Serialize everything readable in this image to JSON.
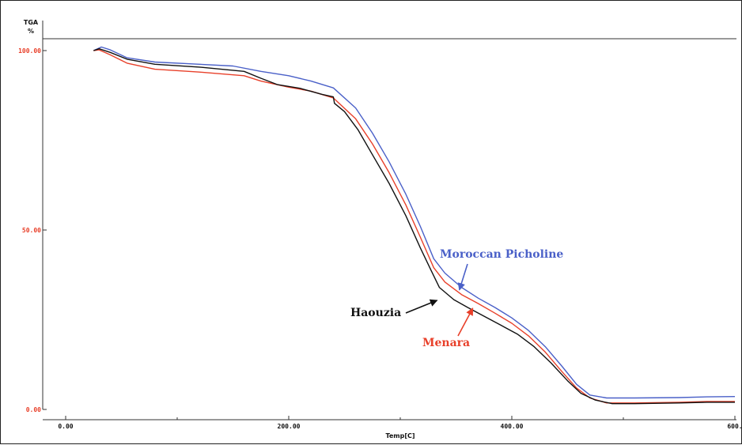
{
  "chart_data": {
    "type": "line",
    "xlabel": "Temp[C]",
    "ylabel": "TGA",
    "yunit": "%",
    "xlim": [
      0,
      600
    ],
    "ylim": [
      0,
      100
    ],
    "x_ticks": [
      {
        "value": 0,
        "label": "0.00"
      },
      {
        "value": 200,
        "label": "200.00"
      },
      {
        "value": 400,
        "label": "400.00"
      },
      {
        "value": 600,
        "label": "600."
      }
    ],
    "y_ticks": [
      {
        "value": 0,
        "label": "0.00"
      },
      {
        "value": 50,
        "label": "50.00"
      },
      {
        "value": 100,
        "label": "100.00"
      }
    ],
    "tick_color_y": "#e8402a",
    "tick_color_x": "#111111",
    "grid": false,
    "series": [
      {
        "name": "Moroccan Picholine",
        "color": "#4a60c8",
        "points": [
          [
            25,
            100
          ],
          [
            32,
            101
          ],
          [
            40,
            100.2
          ],
          [
            55,
            98
          ],
          [
            80,
            96.8
          ],
          [
            120,
            96.2
          ],
          [
            150,
            95.7
          ],
          [
            175,
            94.2
          ],
          [
            200,
            93
          ],
          [
            220,
            91.5
          ],
          [
            240,
            89.6
          ],
          [
            260,
            84
          ],
          [
            275,
            77
          ],
          [
            290,
            69
          ],
          [
            305,
            60
          ],
          [
            318,
            51
          ],
          [
            330,
            42
          ],
          [
            340,
            38
          ],
          [
            355,
            34
          ],
          [
            370,
            31
          ],
          [
            385,
            28.4
          ],
          [
            400,
            25.5
          ],
          [
            415,
            22
          ],
          [
            430,
            17.5
          ],
          [
            445,
            12
          ],
          [
            458,
            7
          ],
          [
            470,
            4
          ],
          [
            485,
            3.2
          ],
          [
            510,
            3.2
          ],
          [
            550,
            3.3
          ],
          [
            575,
            3.5
          ],
          [
            600,
            3.6
          ]
        ]
      },
      {
        "name": "Menara",
        "color": "#e8402a",
        "points": [
          [
            25,
            100
          ],
          [
            30,
            100.2
          ],
          [
            40,
            98.8
          ],
          [
            55,
            96.5
          ],
          [
            80,
            94.8
          ],
          [
            120,
            94
          ],
          [
            160,
            93
          ],
          [
            175,
            91.5
          ],
          [
            200,
            89.8
          ],
          [
            220,
            88.7
          ],
          [
            240,
            86.8
          ],
          [
            260,
            81
          ],
          [
            275,
            74
          ],
          [
            290,
            66
          ],
          [
            305,
            57
          ],
          [
            318,
            48
          ],
          [
            330,
            39.5
          ],
          [
            340,
            35.5
          ],
          [
            355,
            32
          ],
          [
            370,
            29.5
          ],
          [
            385,
            26.8
          ],
          [
            400,
            24
          ],
          [
            415,
            20.5
          ],
          [
            430,
            16
          ],
          [
            445,
            10.5
          ],
          [
            458,
            6
          ],
          [
            470,
            3.2
          ],
          [
            485,
            1.8
          ],
          [
            510,
            1.8
          ],
          [
            550,
            2
          ],
          [
            575,
            2.2
          ],
          [
            600,
            2.2
          ]
        ]
      },
      {
        "name": "Haouzia",
        "color": "#111111",
        "points": [
          [
            25,
            100
          ],
          [
            30,
            100.5
          ],
          [
            40,
            99.5
          ],
          [
            55,
            97.6
          ],
          [
            80,
            96.2
          ],
          [
            120,
            95.4
          ],
          [
            160,
            94.2
          ],
          [
            175,
            92.3
          ],
          [
            190,
            90.5
          ],
          [
            210,
            89.5
          ],
          [
            230,
            87.8
          ],
          [
            240,
            87.1
          ],
          [
            241,
            85.3
          ],
          [
            250,
            83
          ],
          [
            262,
            78
          ],
          [
            275,
            71
          ],
          [
            290,
            63
          ],
          [
            305,
            54
          ],
          [
            318,
            45
          ],
          [
            328,
            38.5
          ],
          [
            335,
            34
          ],
          [
            348,
            30.6
          ],
          [
            360,
            28.5
          ],
          [
            375,
            26
          ],
          [
            390,
            23.5
          ],
          [
            405,
            21
          ],
          [
            420,
            17.5
          ],
          [
            435,
            13
          ],
          [
            450,
            8
          ],
          [
            462,
            4.5
          ],
          [
            475,
            2.6
          ],
          [
            490,
            1.6
          ],
          [
            510,
            1.6
          ],
          [
            550,
            1.8
          ],
          [
            575,
            2
          ],
          [
            600,
            2
          ]
        ]
      }
    ],
    "annotations": [
      {
        "text": "Moroccan Picholine",
        "series": "Moroccan Picholine",
        "arrow_to": [
          353,
          33.3
        ]
      },
      {
        "text": "Haouzia",
        "series": "Haouzia",
        "arrow_to": [
          333,
          30.4
        ]
      },
      {
        "text": "Menara",
        "series": "Menara",
        "arrow_to": [
          365,
          28.2
        ]
      }
    ]
  }
}
